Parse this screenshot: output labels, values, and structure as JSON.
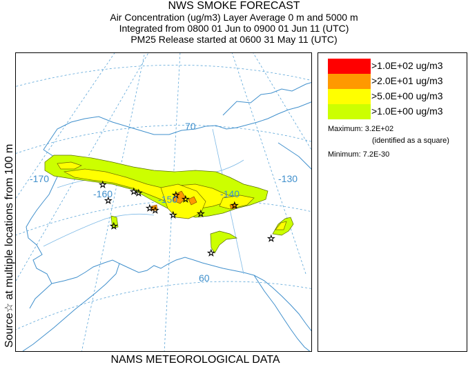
{
  "title": {
    "line1": "NWS SMOKE FORECAST",
    "line2": "Air Concentration (ug/m3) Layer Average    0 m and  5000 m",
    "line3": "Integrated from 0800 01 Jun to 0900 01 Jun 11 (UTC)",
    "line4": "PM25 Release started at 0600 31 May 11 (UTC)"
  },
  "side_label": "Source☆  at multiple locations   from   100 m",
  "footer": "NAMS METEOROLOGICAL DATA",
  "map": {
    "labels": [
      "70",
      "60",
      "-170",
      "-160",
      "-150",
      "-140",
      "-130"
    ],
    "source_icon": "star-icon"
  },
  "legend": {
    "items": [
      {
        "label": ">1.0E+02 ug/m3",
        "color": "#ff0000"
      },
      {
        "label": ">2.0E+01 ug/m3",
        "color": "#ff9900"
      },
      {
        "label": ">5.0E+00 ug/m3",
        "color": "#ffff00"
      },
      {
        "label": ">1.0E+00 ug/m3",
        "color": "#ccff00"
      }
    ],
    "maximum": "Maximum: 3.2E+02",
    "maximum_note": "(identified as a square)",
    "minimum": "Minimum: 7.2E-30"
  }
}
